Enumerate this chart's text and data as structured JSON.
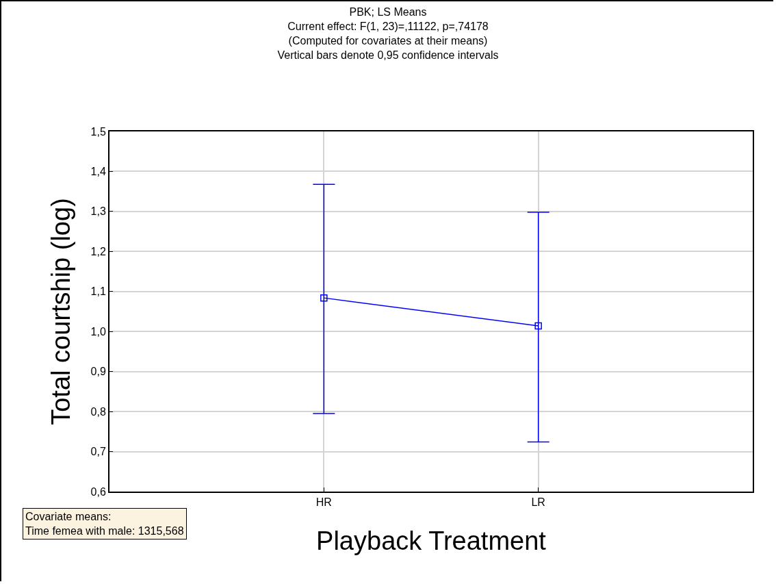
{
  "chart_data": {
    "type": "line",
    "title": "PBK; LS Means",
    "subtitle": "Current effect: F(1, 23)=,11122, p=,74178\n(Computed for covariates at their means)\nVertical bars denote 0,95 confidence intervals",
    "xlabel": "Playback Treatment",
    "ylabel": "Total courtship (log)",
    "categories": [
      "HR",
      "LR"
    ],
    "series": [
      {
        "color": "#0000ff",
        "values": [
          1.084,
          1.014
        ],
        "errors": [
          [
            0.795,
            1.368
          ],
          [
            0.724,
            1.298
          ]
        ]
      }
    ],
    "ylim": [
      0.6,
      1.5
    ],
    "yticks": [
      {
        "value": 0.6,
        "label": "0,6"
      },
      {
        "value": 0.7,
        "label": "0,7"
      },
      {
        "value": 0.8,
        "label": "0,8"
      },
      {
        "value": 0.9,
        "label": "0,9"
      },
      {
        "value": 1.0,
        "label": "1,0"
      },
      {
        "value": 1.1,
        "label": "1,1"
      },
      {
        "value": 1.2,
        "label": "1,2"
      },
      {
        "value": 1.3,
        "label": "1,3"
      },
      {
        "value": 1.4,
        "label": "1,4"
      },
      {
        "value": 1.5,
        "label": "1,5"
      }
    ],
    "grid": true,
    "marker": "square",
    "line_style": "solid",
    "annotations": [
      "Covariate means:\nTime femea with male: 1315,568"
    ]
  }
}
